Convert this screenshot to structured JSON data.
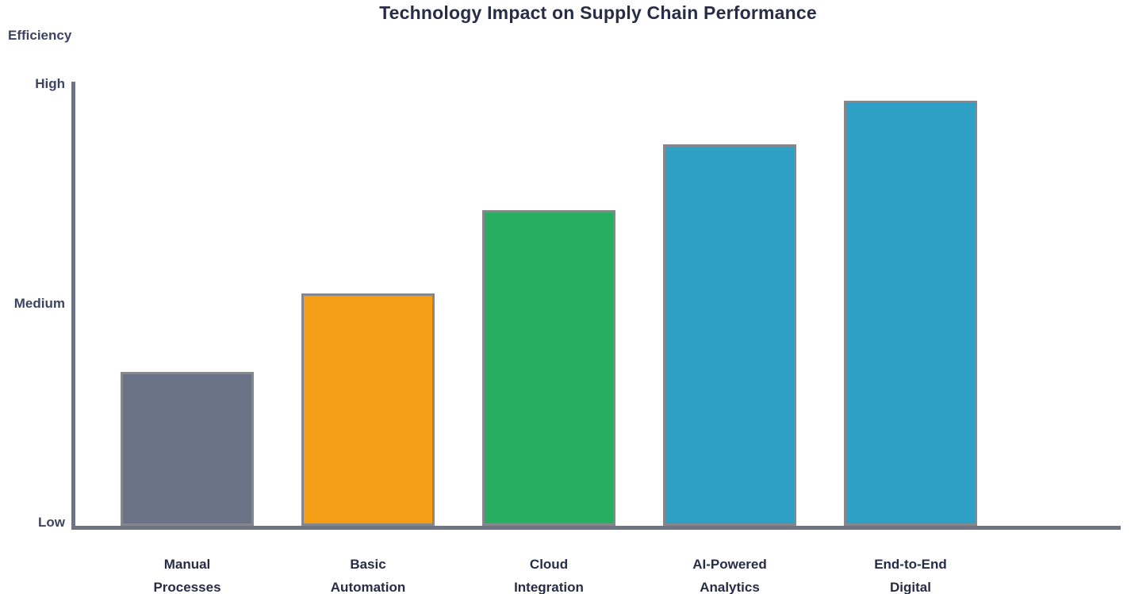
{
  "chart_data": {
    "type": "bar",
    "title": "Technology Impact on Supply Chain Performance",
    "ylabel": "Efficiency",
    "xlabel": "",
    "categories": [
      [
        "Manual",
        "Processes"
      ],
      [
        "Basic",
        "Automation"
      ],
      [
        "Cloud",
        "Integration"
      ],
      [
        "AI-Powered",
        "Analytics"
      ],
      [
        "End-to-End",
        "Digital"
      ]
    ],
    "values": [
      35,
      53,
      72,
      87,
      97
    ],
    "bar_colors": [
      "#6A7286",
      "#F39E14",
      "#27AE60",
      "#2E9FC5",
      "#2E9FC5"
    ],
    "bar_border_color": "#85878D",
    "ytick_labels": [
      "Low",
      "Medium",
      "High"
    ],
    "ytick_values": [
      0,
      50,
      100
    ],
    "ylim": [
      0,
      100
    ],
    "grid": false,
    "legend_position": "none",
    "axis_color": "#6E7484",
    "title_color": "#272C47",
    "tick_text_color": "#3D4363",
    "category_text_color": "#272C47",
    "background_color": "#FFFFFF"
  }
}
